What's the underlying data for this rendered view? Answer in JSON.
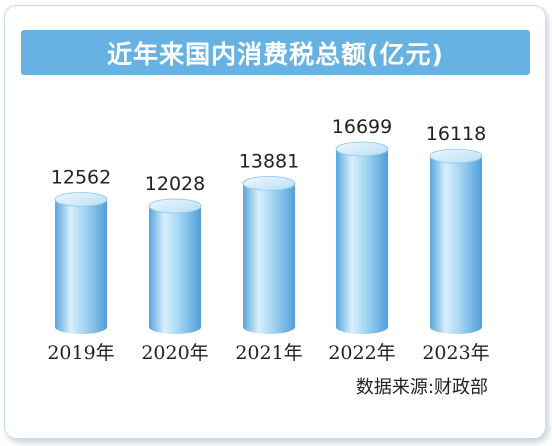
{
  "title": "近年来国内消费税总额(亿元)",
  "source": "数据来源:财政部",
  "colors": {
    "title_bg": "#67b2e2",
    "cylinder_light": "#e3f3fc",
    "cylinder_mid": "#9bd0f1",
    "cylinder_dark": "#4a9ad6",
    "text": "#222222"
  },
  "chart_data": {
    "type": "bar",
    "title": "近年来国内消费税总额(亿元)",
    "categories": [
      "2019年",
      "2020年",
      "2021年",
      "2022年",
      "2023年"
    ],
    "values": [
      12562,
      12028,
      13881,
      16699,
      16118
    ],
    "value_labels": [
      "12562",
      "12028",
      "13881",
      "16699",
      "16118"
    ],
    "xlabel": "",
    "ylabel": "",
    "grid": false,
    "legend": "none"
  }
}
